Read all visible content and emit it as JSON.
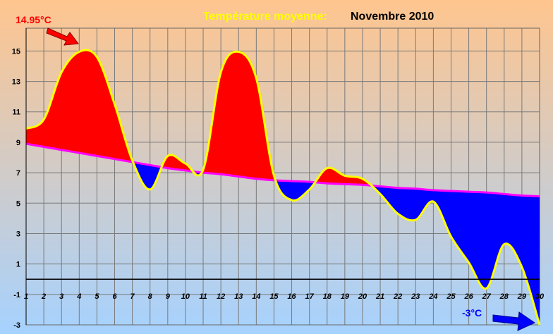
{
  "chart_data": {
    "type": "area",
    "title_part1": "Température moyenne:",
    "title_part2": "Novembre 2010",
    "x": [
      1,
      2,
      3,
      4,
      5,
      6,
      7,
      8,
      9,
      10,
      11,
      12,
      13,
      14,
      15,
      16,
      17,
      18,
      19,
      20,
      21,
      22,
      23,
      24,
      25,
      26,
      27,
      28,
      29,
      30
    ],
    "x_ticks": [
      1,
      2,
      3,
      4,
      5,
      6,
      7,
      8,
      9,
      10,
      11,
      12,
      13,
      14,
      15,
      16,
      17,
      18,
      19,
      20,
      21,
      22,
      23,
      24,
      25,
      26,
      27,
      28,
      29,
      30
    ],
    "xlim": [
      1,
      30
    ],
    "y_ticks": [
      -3,
      -1,
      1,
      3,
      5,
      7,
      9,
      11,
      13,
      15
    ],
    "ylim": [
      -3,
      16.5
    ],
    "series": [
      {
        "values": [
          9.9,
          10.5,
          13.6,
          14.95,
          14.6,
          11.5,
          7.8,
          5.9,
          8.1,
          7.6,
          7.2,
          13.6,
          14.95,
          13.2,
          6.8,
          5.2,
          5.9,
          7.3,
          6.8,
          6.6,
          5.6,
          4.3,
          3.9,
          5.1,
          2.8,
          1.1,
          -0.6,
          2.3,
          0.8,
          -3.0
        ]
      },
      {
        "values": [
          8.9,
          8.7,
          8.5,
          8.3,
          8.1,
          7.9,
          7.7,
          7.5,
          7.3,
          7.15,
          7.0,
          6.9,
          6.75,
          6.6,
          6.5,
          6.45,
          6.4,
          6.3,
          6.25,
          6.2,
          6.1,
          6.0,
          5.95,
          5.85,
          5.8,
          5.75,
          5.7,
          5.6,
          5.5,
          5.45
        ]
      }
    ],
    "annotations": {
      "max_label": "14.95°C",
      "min_label": "-3°C"
    },
    "colors": {
      "above": "#ff0000",
      "below": "#0000ff",
      "daily_line": "#ffff00",
      "trend_line": "#ff00ff",
      "title_part1": "#ffff00",
      "max_label": "#ff0000",
      "min_label": "#0000ff",
      "bg_top": "#ffc58e",
      "bg_bottom": "#a6d2ff",
      "grid": "#7a7a7a"
    },
    "grid": true,
    "legend": "none"
  }
}
